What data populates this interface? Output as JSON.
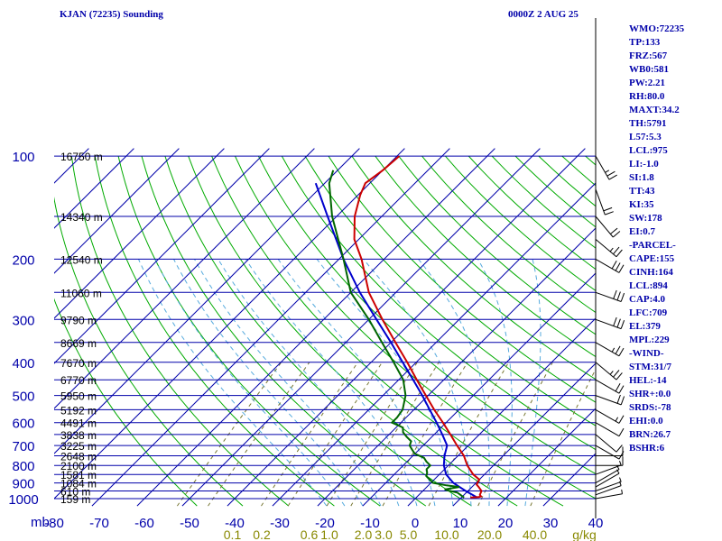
{
  "title_left": "KJAN (72235) Sounding",
  "title_right": "0000Z  2 AUG 25",
  "mb_label": "mb",
  "chart_data": {
    "type": "skewt",
    "pressure_levels": [
      100,
      200,
      300,
      400,
      500,
      600,
      700,
      800,
      900,
      1000
    ],
    "extra_isobars": [
      150,
      250,
      350,
      450,
      550,
      650,
      750,
      850,
      950
    ],
    "temperature_ticks": [
      -80,
      -70,
      -60,
      -50,
      -40,
      -30,
      -20,
      -10,
      0,
      10,
      20,
      30,
      40
    ],
    "temperature_tick_labels": [
      "-80",
      "-70",
      "-60",
      "-50",
      "-40",
      "-30",
      "-20",
      "-10",
      "0",
      "10",
      "20",
      "30",
      "40"
    ],
    "heights": [
      {
        "p": 100,
        "label": "16750 m"
      },
      {
        "p": 150,
        "label": "14340 m"
      },
      {
        "p": 200,
        "label": "12540 m"
      },
      {
        "p": 250,
        "label": "11060 m"
      },
      {
        "p": 300,
        "label": "9790 m"
      },
      {
        "p": 350,
        "label": "8669 m"
      },
      {
        "p": 400,
        "label": "7670 m"
      },
      {
        "p": 450,
        "label": "6770 m"
      },
      {
        "p": 500,
        "label": "5950 m"
      },
      {
        "p": 550,
        "label": "5192 m"
      },
      {
        "p": 600,
        "label": "4491 m"
      },
      {
        "p": 650,
        "label": "3838 m"
      },
      {
        "p": 700,
        "label": "3225 m"
      },
      {
        "p": 750,
        "label": "2648 m"
      },
      {
        "p": 800,
        "label": "2100 m"
      },
      {
        "p": 850,
        "label": "1581 m"
      },
      {
        "p": 900,
        "label": "1084 m"
      },
      {
        "p": 950,
        "label": "610 m"
      },
      {
        "p": 1000,
        "label": "159 m"
      }
    ],
    "mixing_ratio_labels": [
      {
        "w": "0.1",
        "t": -40.5
      },
      {
        "w": "0.2",
        "t": -34
      },
      {
        "w": "0.6",
        "t": -23.5
      },
      {
        "w": "1.0",
        "t": -19
      },
      {
        "w": "2.0",
        "t": -11.5
      },
      {
        "w": "3.0",
        "t": -7
      },
      {
        "w": "5.0",
        "t": -1.5
      },
      {
        "w": "10.0",
        "t": 7
      },
      {
        "w": "20.0",
        "t": 16.5
      },
      {
        "w": "40.0",
        "t": 26.5
      },
      {
        "w": "g/kg",
        "t": 37.5
      }
    ],
    "temperature": [
      [
        993,
        22
      ],
      [
        990,
        23.8
      ],
      [
        985,
        24.1
      ],
      [
        975,
        23.5
      ],
      [
        950,
        23
      ],
      [
        925,
        21.5
      ],
      [
        910,
        20.5
      ],
      [
        880,
        20
      ],
      [
        850,
        17.5
      ],
      [
        800,
        14.2
      ],
      [
        750,
        11.3
      ],
      [
        700,
        7.5
      ],
      [
        650,
        3.6
      ],
      [
        600,
        -0.7
      ],
      [
        550,
        -5.5
      ],
      [
        500,
        -10.5
      ],
      [
        450,
        -16
      ],
      [
        400,
        -22
      ],
      [
        350,
        -29
      ],
      [
        300,
        -37
      ],
      [
        250,
        -46
      ],
      [
        200,
        -55
      ],
      [
        175,
        -61
      ],
      [
        150,
        -66
      ],
      [
        130,
        -69.5
      ],
      [
        120,
        -71
      ],
      [
        110,
        -70
      ],
      [
        100,
        -69.5
      ]
    ],
    "dewpoint": [
      [
        993,
        20.6
      ],
      [
        975,
        19.2
      ],
      [
        960,
        18
      ],
      [
        950,
        16
      ],
      [
        940,
        14.5
      ],
      [
        925,
        17.2
      ],
      [
        915,
        14
      ],
      [
        900,
        10.5
      ],
      [
        880,
        9
      ],
      [
        860,
        7.5
      ],
      [
        840,
        6.9
      ],
      [
        820,
        6
      ],
      [
        800,
        6
      ],
      [
        780,
        4.3
      ],
      [
        760,
        2.9
      ],
      [
        740,
        0
      ],
      [
        720,
        -1.5
      ],
      [
        700,
        -3
      ],
      [
        680,
        -3.6
      ],
      [
        660,
        -5.6
      ],
      [
        640,
        -7.4
      ],
      [
        620,
        -8.5
      ],
      [
        600,
        -12
      ],
      [
        580,
        -12
      ],
      [
        550,
        -12.5
      ],
      [
        500,
        -15
      ],
      [
        450,
        -19
      ],
      [
        400,
        -25
      ],
      [
        350,
        -32
      ],
      [
        300,
        -40
      ],
      [
        250,
        -50
      ],
      [
        200,
        -59
      ],
      [
        150,
        -71
      ],
      [
        120,
        -79
      ],
      [
        110,
        -81
      ]
    ],
    "parcel": [
      [
        993,
        23.5
      ],
      [
        950,
        19.5
      ],
      [
        900,
        15
      ],
      [
        850,
        11.5
      ],
      [
        800,
        9
      ],
      [
        750,
        7
      ],
      [
        700,
        5.3
      ],
      [
        650,
        1.8
      ],
      [
        600,
        -2.1
      ],
      [
        550,
        -6.5
      ],
      [
        500,
        -11.3
      ],
      [
        450,
        -16.8
      ],
      [
        400,
        -23
      ],
      [
        350,
        -30
      ],
      [
        300,
        -38.3
      ],
      [
        250,
        -48
      ],
      [
        200,
        -59
      ],
      [
        150,
        -72
      ],
      [
        120,
        -82
      ]
    ],
    "wind_barbs": [
      {
        "p": 1000,
        "dir": 260,
        "spd": 5
      },
      {
        "p": 975,
        "dir": 250,
        "spd": 5
      },
      {
        "p": 950,
        "dir": 250,
        "spd": 5
      },
      {
        "p": 925,
        "dir": 240,
        "spd": 5
      },
      {
        "p": 900,
        "dir": 240,
        "spd": 5
      },
      {
        "p": 850,
        "dir": 250,
        "spd": 5
      },
      {
        "p": 800,
        "dir": 270,
        "spd": 10
      },
      {
        "p": 750,
        "dir": 270,
        "spd": 10
      },
      {
        "p": 700,
        "dir": 300,
        "spd": 10
      },
      {
        "p": 650,
        "dir": 310,
        "spd": 10
      },
      {
        "p": 600,
        "dir": 300,
        "spd": 10
      },
      {
        "p": 550,
        "dir": 300,
        "spd": 15
      },
      {
        "p": 500,
        "dir": 290,
        "spd": 20
      },
      {
        "p": 450,
        "dir": 300,
        "spd": 20
      },
      {
        "p": 400,
        "dir": 310,
        "spd": 25
      },
      {
        "p": 350,
        "dir": 300,
        "spd": 25
      },
      {
        "p": 300,
        "dir": 290,
        "spd": 30
      },
      {
        "p": 250,
        "dir": 290,
        "spd": 30
      },
      {
        "p": 200,
        "dir": 300,
        "spd": 30
      },
      {
        "p": 175,
        "dir": 310,
        "spd": 25
      },
      {
        "p": 150,
        "dir": 320,
        "spd": 20
      },
      {
        "p": 125,
        "dir": 340,
        "spd": 20
      },
      {
        "p": 100,
        "dir": 330,
        "spd": 25
      }
    ],
    "colors": {
      "isobars": "#0000aa",
      "isotherms": "#0000aa",
      "dry_adiabats": "#00aa00",
      "moist_adiabats": "#55aadd",
      "mixing_ratio": "#777733",
      "temperature": "#cc0000",
      "dewpoint": "#006600",
      "parcel": "#0000cc",
      "labels": "#0000aa",
      "mixing_ratio_labels": "#888800"
    },
    "grid": true,
    "x_range": [
      -80,
      40
    ],
    "y_range": [
      100,
      1050
    ],
    "y_scale": "log",
    "skew": true
  },
  "indices": [
    "WMO:72235",
    "TP:133",
    "FRZ:567",
    "WB0:581",
    "PW:2.21",
    "RH:80.0",
    "MAXT:34.2",
    "TH:5791",
    "L57:5.3",
    "LCL:975",
    "LI:-1.0",
    "SI:1.8",
    "TT:43",
    "KI:35",
    "SW:178",
    "EI:0.7",
    "-PARCEL-",
    "CAPE:155",
    "CINH:164",
    "LCL:894",
    "CAP:4.0",
    "LFC:709",
    "EL:379",
    "MPL:229",
    "-WIND-",
    "STM:31/7",
    "HEL:-14",
    "SHR+:0.0",
    "SRDS:-78",
    "EHI:0.0",
    "BRN:26.7",
    "BSHR:6"
  ]
}
